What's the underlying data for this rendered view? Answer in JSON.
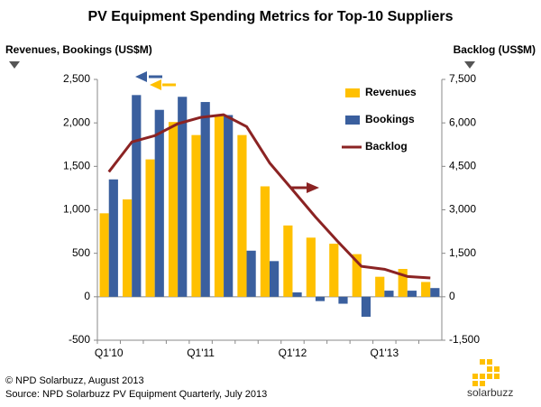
{
  "chart_data": {
    "type": "bar_line",
    "title": "PV Equipment Spending Metrics for Top-10 Suppliers",
    "ylabel": "Revenues, Bookings (US$M)",
    "y2label": "Backlog (US$M)",
    "categories": [
      "Q1'10",
      null,
      null,
      null,
      "Q1'11",
      null,
      null,
      null,
      "Q1'12",
      null,
      null,
      null,
      "Q1'13",
      null,
      null
    ],
    "series": [
      {
        "name": "Revenues",
        "color": "#FFC000",
        "kind": "bar",
        "values": [
          960,
          1120,
          1580,
          2010,
          1860,
          2080,
          1860,
          1270,
          820,
          680,
          610,
          490,
          230,
          320,
          170
        ]
      },
      {
        "name": "Bookings",
        "color": "#3A5F9E",
        "kind": "bar",
        "values": [
          1350,
          2320,
          2150,
          2300,
          2240,
          2090,
          530,
          410,
          50,
          -50,
          -80,
          -230,
          70,
          70,
          100
        ]
      },
      {
        "name": "Backlog",
        "color": "#8B2323",
        "kind": "line",
        "axis": "y2",
        "values": [
          4310,
          5340,
          5560,
          5970,
          6190,
          6280,
          5870,
          4620,
          3690,
          2750,
          1880,
          1050,
          950,
          700,
          650
        ]
      }
    ],
    "ylim": [
      -500,
      2500
    ],
    "yticks": [
      {
        "value": -500,
        "label": "-500"
      },
      0,
      500,
      {
        "value": 1000,
        "label": "1,000"
      },
      {
        "value": 1500,
        "label": "1,500"
      },
      {
        "value": 2000,
        "label": "2,000"
      },
      {
        "value": 2500,
        "label": "2,500"
      }
    ],
    "y2lim": [
      -1500,
      7500
    ],
    "y2ticks": [
      {
        "value": -1500,
        "label": "-1,500"
      },
      0,
      {
        "value": 1500,
        "label": "1,500"
      },
      {
        "value": 3000,
        "label": "3,000"
      },
      {
        "value": 4500,
        "label": "4,500"
      },
      {
        "value": 6000,
        "label": "6,000"
      },
      {
        "value": 7500,
        "label": "7,500"
      }
    ],
    "legend": "right",
    "footer": [
      "© NPD Solarbuzz, August 2013",
      "Source: NPD Solarbuzz PV Equipment Quarterly, July 2013"
    ],
    "logo": "solarbuzz"
  }
}
